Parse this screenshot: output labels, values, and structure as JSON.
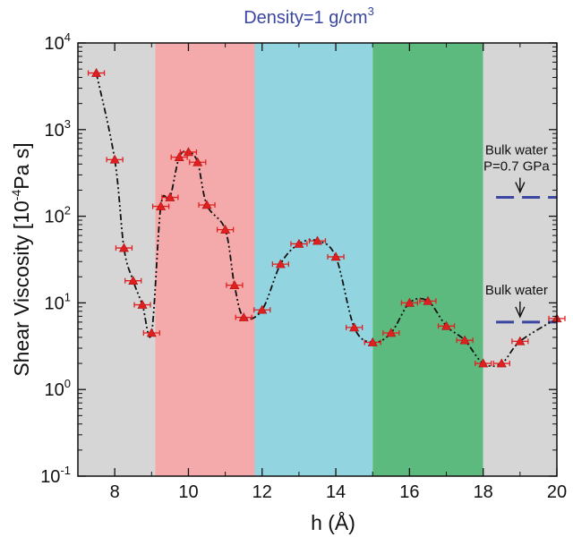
{
  "chart_data": {
    "type": "line",
    "title": "Density=1 g/cm",
    "title_superscript": "3",
    "xlabel": "h (Å)",
    "ylabel": "Shear Viscosity [10",
    "ylabel_superscript": "-4",
    "ylabel_suffix": "Pa s]",
    "xlim": [
      7,
      20
    ],
    "ylim": [
      0.1,
      10000
    ],
    "y_scale": "log",
    "grid": false,
    "x_ticks": [
      8,
      10,
      12,
      14,
      16,
      18,
      20
    ],
    "y_ticks": [
      {
        "value": 0.1,
        "base": "10",
        "exp": "-1"
      },
      {
        "value": 1,
        "base": "10",
        "exp": "0"
      },
      {
        "value": 10,
        "base": "10",
        "exp": "1"
      },
      {
        "value": 100,
        "base": "10",
        "exp": "2"
      },
      {
        "value": 1000,
        "base": "10",
        "exp": "3"
      },
      {
        "value": 10000,
        "base": "10",
        "exp": "4"
      }
    ],
    "bands": [
      {
        "x0": 7,
        "x1": 9.1,
        "color": "#d6d6d6"
      },
      {
        "x0": 9.1,
        "x1": 11.8,
        "color": "#f4a9ab"
      },
      {
        "x0": 11.8,
        "x1": 15.0,
        "color": "#92d4e0"
      },
      {
        "x0": 15.0,
        "x1": 18.0,
        "color": "#5dba7e"
      },
      {
        "x0": 18.0,
        "x1": 20,
        "color": "#d6d6d6"
      }
    ],
    "series": [
      {
        "color": "#e02020",
        "line_color": "#111111",
        "x": [
          7.5,
          8.0,
          8.25,
          8.5,
          8.75,
          9.0,
          9.25,
          9.5,
          9.75,
          10.0,
          10.25,
          10.5,
          11.0,
          11.25,
          11.5,
          12.0,
          12.5,
          13.0,
          13.5,
          14.0,
          14.5,
          15.0,
          15.5,
          16.0,
          16.5,
          17.0,
          17.5,
          18.0,
          18.5,
          19.0,
          20.0
        ],
        "y": [
          4500,
          450,
          43,
          18,
          9.5,
          4.5,
          130,
          165,
          480,
          550,
          420,
          135,
          70,
          16,
          6.8,
          8.3,
          28,
          48,
          52,
          34,
          5.2,
          3.5,
          4.5,
          10,
          10.5,
          5.4,
          3.7,
          2.0,
          2.0,
          3.6,
          6.6
        ]
      }
    ],
    "reference_lines": [
      {
        "label": "Bulk water",
        "label_line2": "P=0.7 GPa",
        "y": 165,
        "x0": 18.35,
        "x1": 20,
        "color": "#3a46a0"
      },
      {
        "label": "Bulk water",
        "label_line2": "",
        "y": 6.0,
        "x0": 18.35,
        "x1": 20,
        "color": "#3a46a0"
      }
    ]
  }
}
